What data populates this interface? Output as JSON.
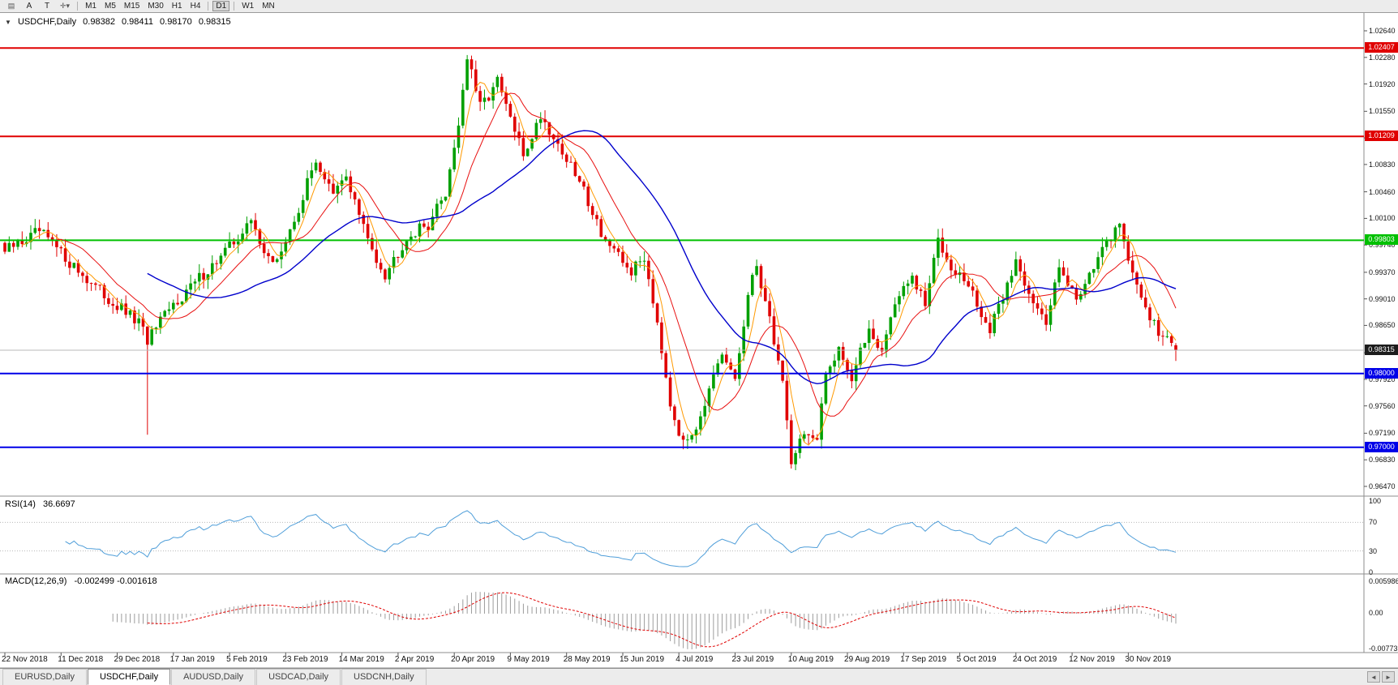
{
  "toolbar": {
    "icons": {
      "chart": "▤",
      "letter_a": "A",
      "letter_t": "T",
      "crosshair": "✛",
      "caret": "▾",
      "scroll_left": "◄",
      "scroll_right": "►",
      "collapse": "▼"
    },
    "timeframes": [
      "M1",
      "M5",
      "M15",
      "M30",
      "H1",
      "H4",
      "D1",
      "W1",
      "MN"
    ],
    "active_timeframe": "D1"
  },
  "header": {
    "symbol": "USDCHF,Daily",
    "open": "0.98382",
    "high": "0.98411",
    "low": "0.98170",
    "close": "0.98315"
  },
  "indicators": {
    "rsi_label": "RSI(14)",
    "rsi_value": "36.6697",
    "macd_label": "MACD(12,26,9)",
    "macd_values": "-0.002499 -0.001618"
  },
  "tabs": {
    "items": [
      "EURUSD,Daily",
      "USDCHF,Daily",
      "AUDUSD,Daily",
      "USDCAD,Daily",
      "USDCNH,Daily"
    ],
    "active_index": 1
  },
  "chart_data": {
    "type": "candlestick",
    "title": "USDCHF Daily",
    "symbol": "USDCHF",
    "timeframe": "Daily",
    "ylim": [
      0.9647,
      1.0264
    ],
    "price_axis_ticks": [
      "1.02640",
      "1.02280",
      "1.01920",
      "1.01550",
      "1.01190",
      "1.00830",
      "1.00460",
      "1.00100",
      "0.99740",
      "0.99370",
      "0.99010",
      "0.98650",
      "0.98280",
      "0.97920",
      "0.97560",
      "0.97190",
      "0.96830",
      "0.96470"
    ],
    "date_labels": [
      "22 Nov 2018",
      "11 Dec 2018",
      "29 Dec 2018",
      "17 Jan 2019",
      "5 Feb 2019",
      "23 Feb 2019",
      "14 Mar 2019",
      "2 Apr 2019",
      "20 Apr 2019",
      "9 May 2019",
      "28 May 2019",
      "15 Jun 2019",
      "4 Jul 2019",
      "23 Jul 2019",
      "10 Aug 2019",
      "29 Aug 2019",
      "17 Sep 2019",
      "5 Oct 2019",
      "24 Oct 2019",
      "12 Nov 2019",
      "30 Nov 2019"
    ],
    "horizontal_lines": [
      {
        "value": 1.02407,
        "label": "1.02407",
        "color": "#e00000",
        "width": 2
      },
      {
        "value": 1.01209,
        "label": "1.01209",
        "color": "#e00000",
        "width": 2
      },
      {
        "value": 0.99803,
        "label": "0.99803",
        "color": "#00c000",
        "width": 2
      },
      {
        "value": 0.98,
        "label": "0.98000",
        "color": "#0000e8",
        "width": 2
      },
      {
        "value": 0.97,
        "label": "0.97000",
        "color": "#0000e8",
        "width": 2
      }
    ],
    "current_price": {
      "value": 0.98315,
      "label": "0.98315",
      "line_color": "#b8b8b8",
      "box_color": "#1c1c1c"
    },
    "colors": {
      "candle_up": "#00a000",
      "candle_down": "#e00000",
      "hist": "#9c9c9c",
      "signal": "#e00000",
      "rsi_line": "#4f9ed9",
      "level_dotted": "#b8b8b8",
      "frame": "#8e8e8e"
    },
    "moving_averages": [
      {
        "period": 5,
        "color": "#ff9900",
        "width": 1
      },
      {
        "period": 13,
        "color": "#e81010",
        "width": 1
      },
      {
        "period": 34,
        "color": "#0000cc",
        "width": 1.4
      }
    ],
    "rsi": {
      "period": 14,
      "levels": [
        70,
        30
      ],
      "axis": [
        {
          "v": 100,
          "t": "100"
        },
        {
          "v": 70,
          "t": "70"
        },
        {
          "v": 30,
          "t": "30"
        },
        {
          "v": 0,
          "t": "0"
        }
      ]
    },
    "macd": {
      "fast": 12,
      "slow": 26,
      "signal": 9,
      "axis_top": "0.005986",
      "axis_zero": "0.00",
      "axis_bottom": "-0.00773"
    },
    "candles": {
      "count": 272,
      "label_step": 13,
      "crash_index": 33,
      "crash_low": 0.9717,
      "last": {
        "open": 0.98382,
        "high": 0.98411,
        "low": 0.9817,
        "close": 0.98315
      },
      "anchors": [
        [
          0,
          0.9965
        ],
        [
          8,
          0.9992
        ],
        [
          16,
          0.9945
        ],
        [
          24,
          0.99
        ],
        [
          31,
          0.9868
        ],
        [
          33,
          0.9845
        ],
        [
          40,
          0.99
        ],
        [
          50,
          0.9958
        ],
        [
          57,
          1.0005
        ],
        [
          62,
          0.9945
        ],
        [
          66,
          0.999
        ],
        [
          72,
          1.009
        ],
        [
          76,
          1.004
        ],
        [
          79,
          1.0068
        ],
        [
          84,
          0.998
        ],
        [
          88,
          0.9935
        ],
        [
          93,
          0.9985
        ],
        [
          98,
          1.0002
        ],
        [
          102,
          1.0045
        ],
        [
          105,
          1.014
        ],
        [
          107,
          1.0228
        ],
        [
          110,
          1.016
        ],
        [
          114,
          1.0195
        ],
        [
          120,
          1.0095
        ],
        [
          124,
          1.015
        ],
        [
          129,
          1.01
        ],
        [
          134,
          1.0048
        ],
        [
          138,
          0.9992
        ],
        [
          141,
          0.9962
        ],
        [
          145,
          0.9938
        ],
        [
          148,
          0.9958
        ],
        [
          151,
          0.9872
        ],
        [
          154,
          0.9762
        ],
        [
          157,
          0.9702
        ],
        [
          160,
          0.9732
        ],
        [
          163,
          0.9775
        ],
        [
          166,
          0.9822
        ],
        [
          169,
          0.9792
        ],
        [
          172,
          0.9902
        ],
        [
          174,
          0.9948
        ],
        [
          177,
          0.9872
        ],
        [
          180,
          0.979
        ],
        [
          182,
          0.9682
        ],
        [
          185,
          0.9722
        ],
        [
          188,
          0.9705
        ],
        [
          190,
          0.9798
        ],
        [
          193,
          0.9838
        ],
        [
          196,
          0.9792
        ],
        [
          200,
          0.9862
        ],
        [
          203,
          0.983
        ],
        [
          206,
          0.9898
        ],
        [
          210,
          0.9928
        ],
        [
          213,
          0.9892
        ],
        [
          216,
          0.9982
        ],
        [
          219,
          0.9948
        ],
        [
          223,
          0.9918
        ],
        [
          228,
          0.9856
        ],
        [
          231,
          0.9905
        ],
        [
          234,
          0.9952
        ],
        [
          238,
          0.99
        ],
        [
          241,
          0.9862
        ],
        [
          244,
          0.9952
        ],
        [
          248,
          0.9898
        ],
        [
          251,
          0.994
        ],
        [
          255,
          0.9972
        ],
        [
          258,
          1.0008
        ],
        [
          261,
          0.993
        ],
        [
          264,
          0.9892
        ],
        [
          267,
          0.9855
        ],
        [
          271,
          0.98315
        ]
      ]
    }
  }
}
